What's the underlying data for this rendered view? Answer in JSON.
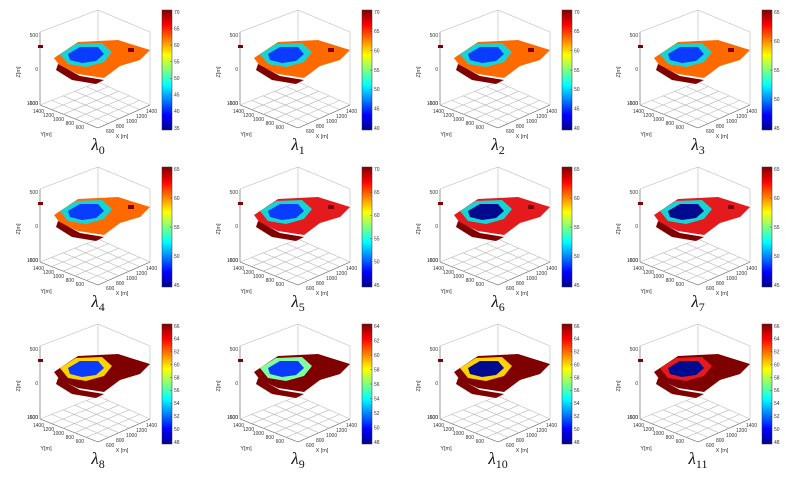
{
  "figure": {
    "panels": [
      {
        "caption_symbol": "λ",
        "caption_sub": "0",
        "colorbar_ticks": [
          "70",
          "65",
          "60",
          "55",
          "50",
          "45",
          "40",
          "35"
        ]
      },
      {
        "caption_symbol": "λ",
        "caption_sub": "1",
        "colorbar_ticks": [
          "70",
          "65",
          "60",
          "55",
          "50",
          "45",
          "40"
        ]
      },
      {
        "caption_symbol": "λ",
        "caption_sub": "2",
        "colorbar_ticks": [
          "70",
          "65",
          "60",
          "55",
          "50",
          "45",
          "40"
        ]
      },
      {
        "caption_symbol": "λ",
        "caption_sub": "3",
        "colorbar_ticks": [
          "65",
          "60",
          "55",
          "50",
          "45"
        ]
      },
      {
        "caption_symbol": "λ",
        "caption_sub": "4",
        "colorbar_ticks": [
          "65",
          "60",
          "55",
          "50",
          "45"
        ]
      },
      {
        "caption_symbol": "λ",
        "caption_sub": "5",
        "colorbar_ticks": [
          "70",
          "65",
          "60",
          "55",
          "50",
          "45"
        ]
      },
      {
        "caption_symbol": "λ",
        "caption_sub": "6",
        "colorbar_ticks": [
          "65",
          "60",
          "55",
          "50",
          "45"
        ]
      },
      {
        "caption_symbol": "λ",
        "caption_sub": "7",
        "colorbar_ticks": [
          "65",
          "60",
          "55",
          "50",
          "45"
        ]
      },
      {
        "caption_symbol": "λ",
        "caption_sub": "8",
        "colorbar_ticks": [
          "66",
          "64",
          "62",
          "60",
          "58",
          "56",
          "54",
          "52",
          "50",
          "48"
        ]
      },
      {
        "caption_symbol": "λ",
        "caption_sub": "9",
        "colorbar_ticks": [
          "64",
          "62",
          "60",
          "58",
          "56",
          "54",
          "52",
          "50",
          "48"
        ]
      },
      {
        "caption_symbol": "λ",
        "caption_sub": "10",
        "colorbar_ticks": [
          "66",
          "64",
          "62",
          "60",
          "58",
          "56",
          "54",
          "52",
          "50",
          "48"
        ]
      },
      {
        "caption_symbol": "λ",
        "caption_sub": "11",
        "colorbar_ticks": [
          "66",
          "64",
          "62",
          "60",
          "58",
          "56",
          "54",
          "52",
          "50",
          "48"
        ]
      }
    ]
  },
  "chart_data": {
    "type": "heatmap",
    "description_of_axes": {
      "xlabel": "X [m]",
      "ylabel": "Y[m]",
      "zlabel": "Z[m]"
    },
    "x_ticks": [
      "600",
      "800",
      "1000",
      "1200",
      "1400"
    ],
    "y_ticks": [
      "600",
      "800",
      "1000",
      "1200",
      "1400",
      "1600"
    ],
    "z_ticks": [
      "500",
      "0",
      "-500"
    ],
    "colormap": "jet",
    "colors": {
      "dark_red": "#7f0000",
      "red": "#e41a1c",
      "orange": "#ff6a00",
      "yellow": "#ffd200",
      "cyan": "#19d3d3",
      "blue": "#0a3cff",
      "dark_blue": "#000a8f"
    }
  }
}
